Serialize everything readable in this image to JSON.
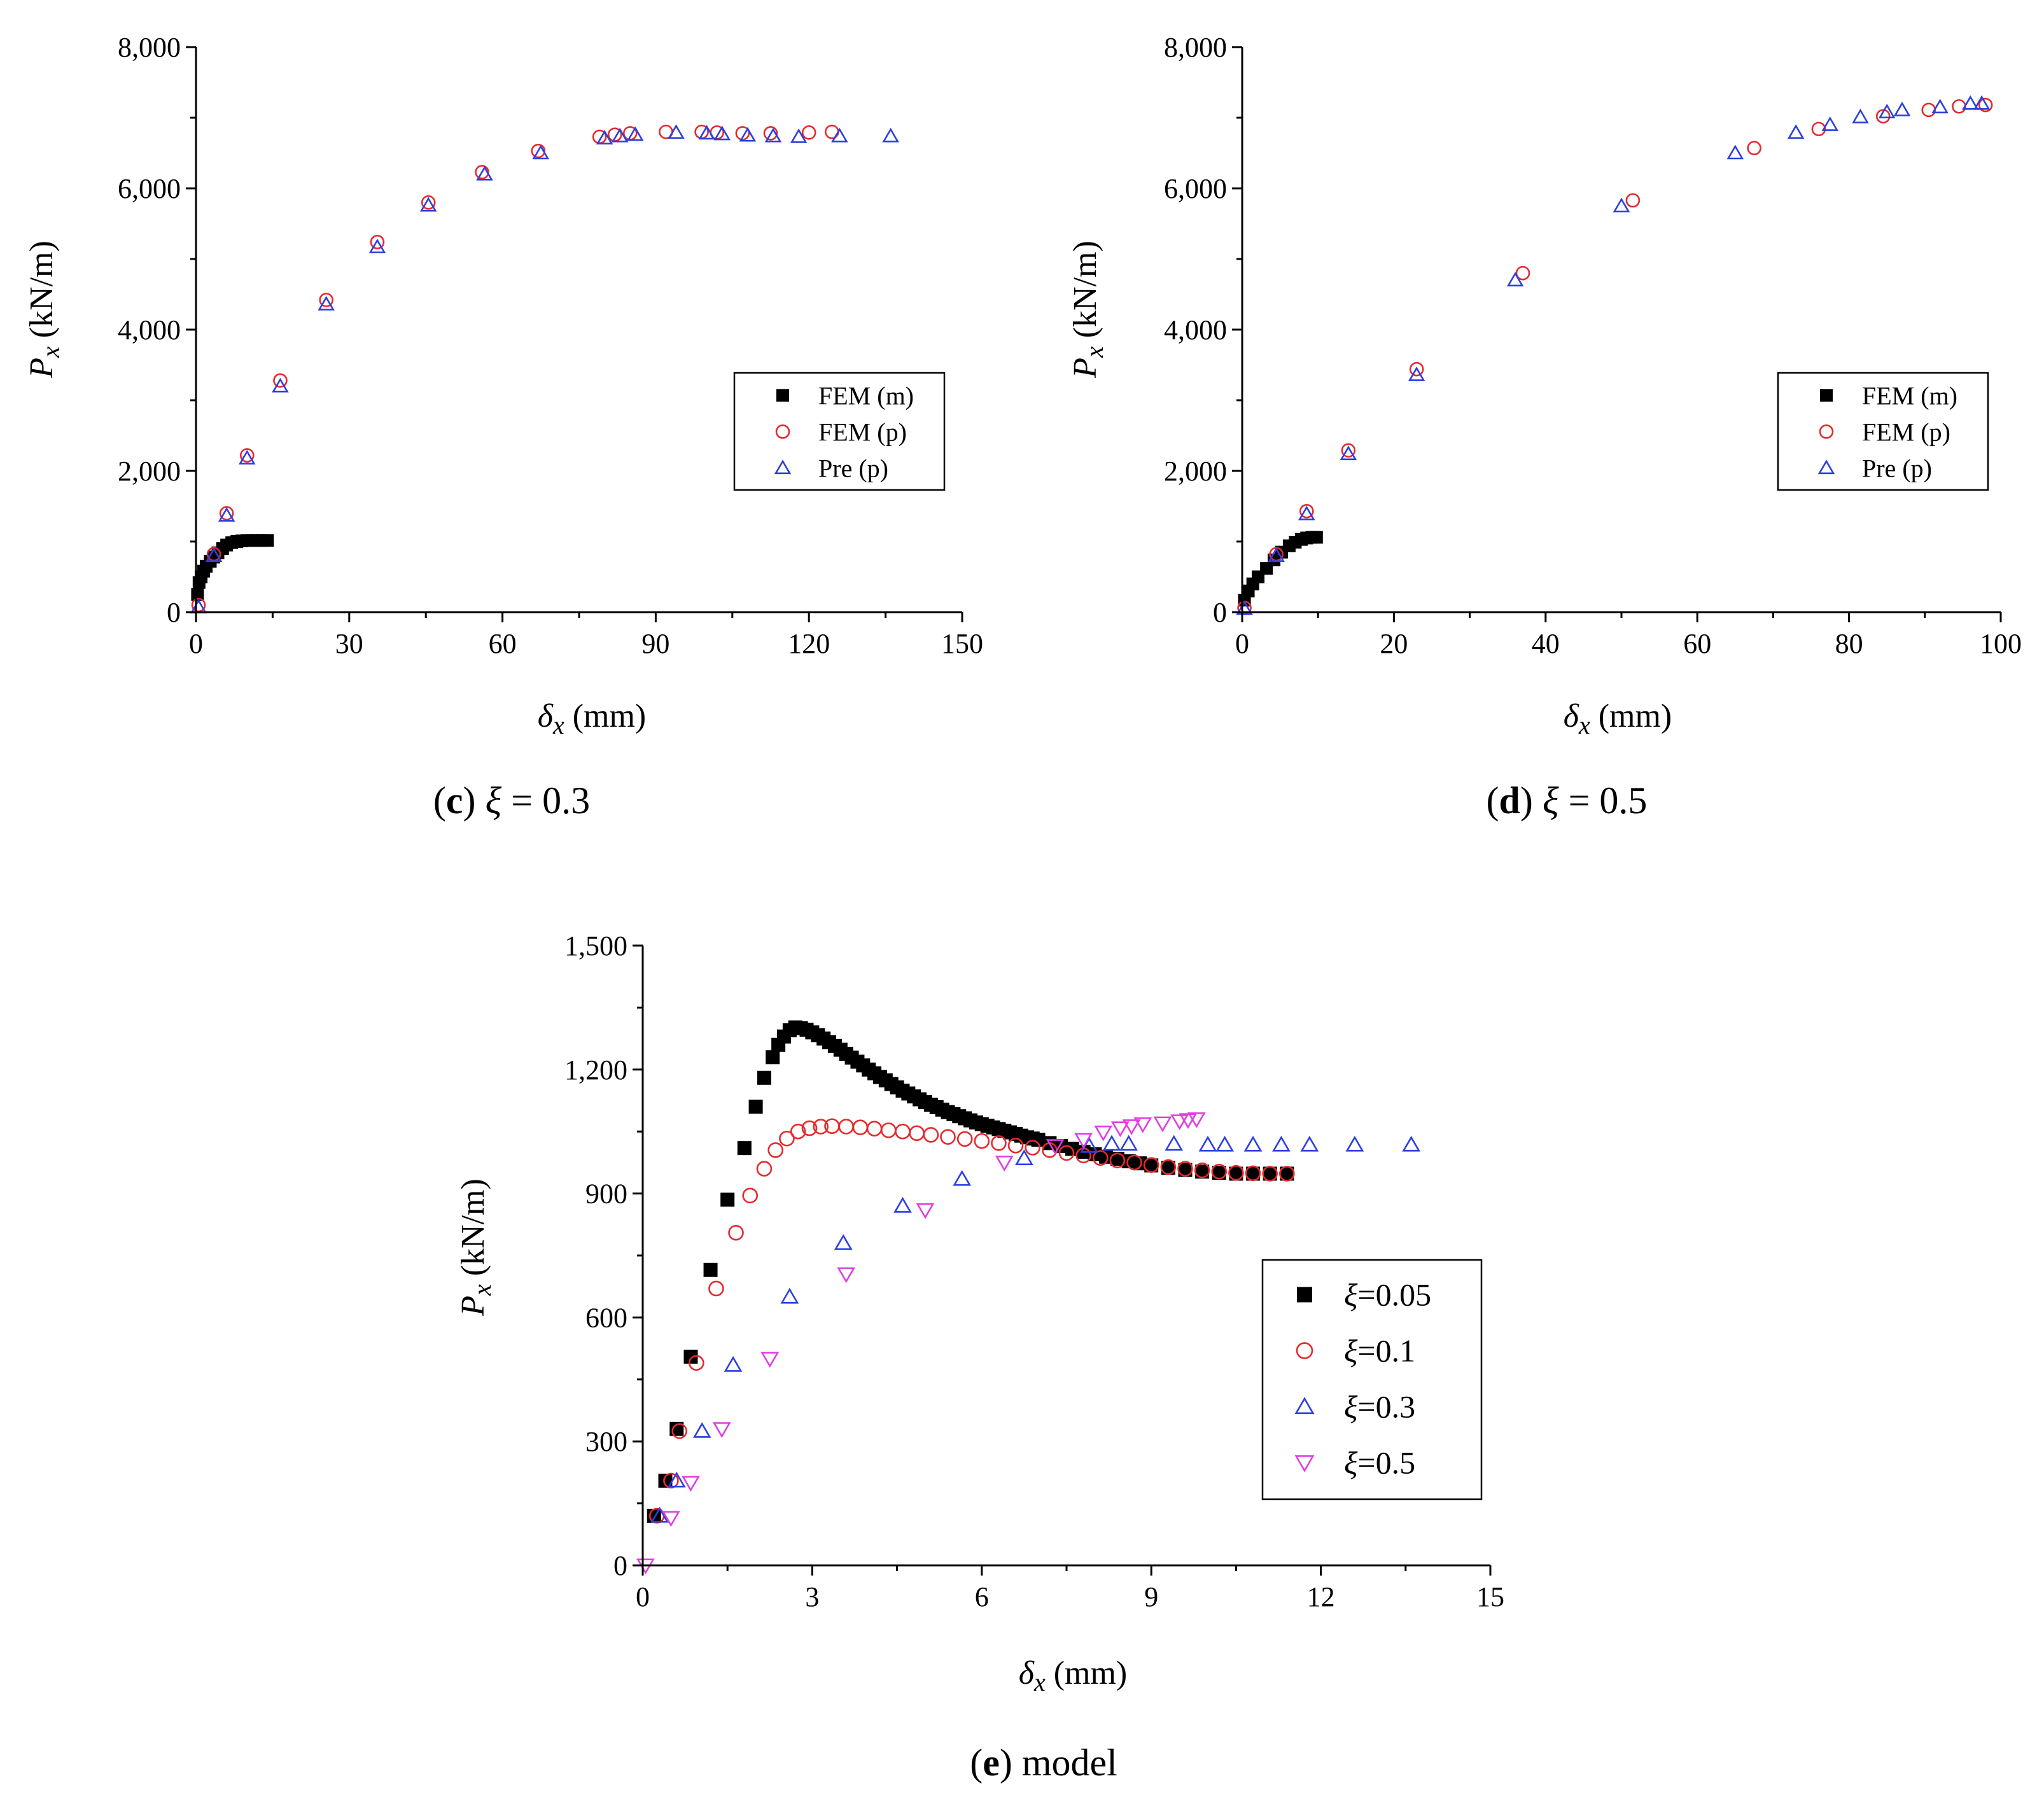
{
  "chart_data": [
    {
      "id": "c",
      "type": "scatter",
      "caption_letter": "c",
      "caption_rest": " = 0.3",
      "caption_symbol": "ξ",
      "xlabel_symbol": "δ",
      "xlabel_sub": "x",
      "xlabel_unit": " (mm)",
      "ylabel_symbol": "P",
      "ylabel_sub": "x",
      "ylabel_unit": " (kN/m)",
      "xlim": [
        0,
        150
      ],
      "ylim": [
        0,
        8000
      ],
      "xticks": [
        0,
        30,
        60,
        90,
        120,
        150
      ],
      "xtick_labels": [
        "0",
        "30",
        "60",
        "90",
        "120",
        "150"
      ],
      "yticks": [
        0,
        2000,
        4000,
        6000,
        8000
      ],
      "ytick_labels": [
        "0",
        "2,000",
        "4,000",
        "6,000",
        "8,000"
      ],
      "legend_position": "middle-right",
      "series": [
        {
          "name": "FEM (m)",
          "marker": "square",
          "color": "#000000",
          "x": [
            0.3,
            0.6,
            1.0,
            1.5,
            2.0,
            2.8,
            3.5,
            4.3,
            5.2,
            6.0,
            7.0,
            8.0,
            9.0,
            10.0,
            11.0,
            12.0,
            13.0,
            14.0
          ],
          "y": [
            250,
            420,
            500,
            580,
            650,
            720,
            780,
            840,
            900,
            950,
            985,
            1000,
            1010,
            1015,
            1015,
            1015,
            1015,
            1015
          ]
        },
        {
          "name": "FEM (p)",
          "marker": "circle",
          "color": "#e8282d",
          "x": [
            0.5,
            3.5,
            6.0,
            10.0,
            16.5,
            25.5,
            35.5,
            45.5,
            56.0,
            67.0,
            79.0,
            82.0,
            85.0,
            92.0,
            99.0,
            102.0,
            107.0,
            112.5,
            120.0,
            124.5
          ],
          "y": [
            100,
            820,
            1400,
            2220,
            3280,
            4420,
            5240,
            5800,
            6230,
            6530,
            6730,
            6760,
            6780,
            6800,
            6800,
            6790,
            6780,
            6780,
            6790,
            6800
          ]
        },
        {
          "name": "Pre (p)",
          "marker": "triangle-up",
          "color": "#2a3fe0",
          "x": [
            0.5,
            3.5,
            6.0,
            10.0,
            16.5,
            25.5,
            35.5,
            45.5,
            56.5,
            67.5,
            80.0,
            83.0,
            86.0,
            94.0,
            100.0,
            103.0,
            108.0,
            113.0,
            118.0,
            126.0,
            136.0
          ],
          "y": [
            70,
            800,
            1370,
            2180,
            3200,
            4360,
            5170,
            5760,
            6200,
            6500,
            6710,
            6740,
            6760,
            6790,
            6780,
            6770,
            6750,
            6740,
            6730,
            6740,
            6740
          ]
        }
      ]
    },
    {
      "id": "d",
      "type": "scatter",
      "caption_letter": "d",
      "caption_rest": " = 0.5",
      "caption_symbol": "ξ",
      "xlabel_symbol": "δ",
      "xlabel_sub": "x",
      "xlabel_unit": " (mm)",
      "ylabel_symbol": "P",
      "ylabel_sub": "x",
      "ylabel_unit": " (kN/m)",
      "xlim": [
        0,
        100
      ],
      "ylim": [
        0,
        8000
      ],
      "xticks": [
        0,
        20,
        40,
        60,
        80,
        100
      ],
      "xtick_labels": [
        "0",
        "20",
        "40",
        "60",
        "80",
        "100"
      ],
      "yticks": [
        0,
        2000,
        4000,
        6000,
        8000
      ],
      "ytick_labels": [
        "0",
        "2,000",
        "4,000",
        "6,000",
        "8,000"
      ],
      "legend_position": "middle-right",
      "series": [
        {
          "name": "FEM (m)",
          "marker": "square",
          "color": "#000000",
          "x": [
            0.3,
            0.8,
            1.4,
            2.1,
            3.2,
            4.2,
            5.2,
            6.2,
            7.0,
            7.8,
            8.5,
            9.2,
            9.8
          ],
          "y": [
            170,
            300,
            400,
            500,
            620,
            740,
            850,
            940,
            990,
            1030,
            1050,
            1060,
            1060
          ]
        },
        {
          "name": "FEM (p)",
          "marker": "circle",
          "color": "#e8282d",
          "x": [
            0.3,
            4.5,
            8.5,
            14.0,
            23.0,
            37.0,
            51.5,
            67.5,
            76.0,
            84.5,
            90.5,
            94.5,
            98.0
          ],
          "y": [
            60,
            820,
            1430,
            2290,
            3440,
            4800,
            5830,
            6570,
            6840,
            7020,
            7110,
            7160,
            7180
          ]
        },
        {
          "name": "Pre (p)",
          "marker": "triangle-up",
          "color": "#2a3fe0",
          "x": [
            0.3,
            4.5,
            8.5,
            14.0,
            23.0,
            36.0,
            50.0,
            65.0,
            73.0,
            77.5,
            81.5,
            85.0,
            87.0,
            92.0,
            96.0,
            97.5
          ],
          "y": [
            50,
            800,
            1390,
            2240,
            3360,
            4700,
            5750,
            6500,
            6790,
            6900,
            7010,
            7080,
            7110,
            7150,
            7200,
            7200
          ]
        }
      ]
    },
    {
      "id": "e",
      "type": "scatter",
      "caption_letter": "e",
      "caption_rest": " model",
      "caption_symbol": "",
      "xlabel_symbol": "δ",
      "xlabel_sub": "x",
      "xlabel_unit": " (mm)",
      "ylabel_symbol": "P",
      "ylabel_sub": "x",
      "ylabel_unit": " (kN/m)",
      "xlim": [
        0,
        15
      ],
      "ylim": [
        0,
        1500
      ],
      "xticks": [
        0,
        3,
        6,
        9,
        12,
        15
      ],
      "xtick_labels": [
        "0",
        "3",
        "6",
        "9",
        "12",
        "15"
      ],
      "yticks": [
        0,
        300,
        600,
        900,
        1200,
        1500
      ],
      "ytick_labels": [
        "0",
        "300",
        "600",
        "900",
        "1,200",
        "1,500"
      ],
      "legend_position": "bottom-right",
      "series": [
        {
          "name": "=0.05",
          "symbol": "ξ",
          "marker": "square",
          "color": "#000000",
          "x": [
            0.2,
            0.4,
            0.6,
            0.85,
            1.2,
            1.5,
            1.8,
            2.0,
            2.15,
            2.3,
            2.4,
            2.5,
            2.6,
            2.7,
            2.8,
            2.9,
            3.0,
            3.1,
            3.2,
            3.3,
            3.4,
            3.5,
            3.6,
            3.7,
            3.8,
            3.9,
            4.0,
            4.1,
            4.2,
            4.3,
            4.4,
            4.5,
            4.6,
            4.7,
            4.8,
            4.9,
            5.0,
            5.1,
            5.2,
            5.3,
            5.4,
            5.5,
            5.6,
            5.7,
            5.8,
            5.9,
            6.0,
            6.1,
            6.2,
            6.3,
            6.4,
            6.5,
            6.6,
            6.7,
            6.8,
            6.9,
            7.0,
            7.2,
            7.4,
            7.6,
            7.8,
            8.0,
            8.2,
            8.4,
            8.6,
            8.8,
            9.0,
            9.3,
            9.6,
            9.9,
            10.2,
            10.5,
            10.8,
            11.1,
            11.4
          ],
          "y": [
            120,
            205,
            330,
            505,
            715,
            885,
            1010,
            1110,
            1180,
            1230,
            1260,
            1280,
            1295,
            1302,
            1300,
            1296,
            1290,
            1283,
            1275,
            1266,
            1257,
            1248,
            1238,
            1229,
            1219,
            1210,
            1200,
            1191,
            1182,
            1174,
            1165,
            1157,
            1149,
            1142,
            1135,
            1128,
            1121,
            1115,
            1109,
            1103,
            1097,
            1092,
            1087,
            1082,
            1077,
            1072,
            1068,
            1064,
            1060,
            1056,
            1052,
            1048,
            1044,
            1040,
            1036,
            1033,
            1030,
            1022,
            1015,
            1008,
            1001,
            995,
            989,
            984,
            978,
            973,
            968,
            962,
            957,
            953,
            950,
            948,
            948,
            948,
            948
          ]
        },
        {
          "name": "=0.1",
          "symbol": "ξ",
          "marker": "circle",
          "color": "#e8282d",
          "x": [
            0.25,
            0.5,
            0.65,
            0.95,
            1.3,
            1.65,
            1.9,
            2.15,
            2.35,
            2.55,
            2.75,
            2.95,
            3.15,
            3.35,
            3.6,
            3.85,
            4.1,
            4.35,
            4.6,
            4.85,
            5.1,
            5.4,
            5.7,
            6.0,
            6.3,
            6.6,
            6.9,
            7.2,
            7.5,
            7.8,
            8.1,
            8.4,
            8.7,
            9.0,
            9.3,
            9.6,
            9.9,
            10.2,
            10.5,
            10.8,
            11.1,
            11.4
          ],
          "y": [
            120,
            205,
            325,
            490,
            670,
            805,
            895,
            960,
            1005,
            1033,
            1050,
            1058,
            1062,
            1063,
            1062,
            1060,
            1057,
            1053,
            1050,
            1046,
            1042,
            1037,
            1032,
            1027,
            1022,
            1016,
            1011,
            1005,
            998,
            992,
            986,
            980,
            975,
            969,
            964,
            960,
            956,
            953,
            950,
            949,
            948,
            948
          ]
        },
        {
          "name": "=0.3",
          "symbol": "ξ",
          "marker": "triangle-up",
          "color": "#2a3fe0",
          "x": [
            0.3,
            0.6,
            1.05,
            1.6,
            2.6,
            3.55,
            4.6,
            5.65,
            6.75,
            7.9,
            8.3,
            8.6,
            9.4,
            10.0,
            10.3,
            10.8,
            11.3,
            11.8,
            12.6,
            13.6
          ],
          "y": [
            120,
            205,
            325,
            485,
            650,
            780,
            870,
            935,
            985,
            1015,
            1020,
            1020,
            1020,
            1018,
            1018,
            1018,
            1018,
            1018,
            1018,
            1018
          ]
        },
        {
          "name": "=0.5",
          "symbol": "ξ",
          "marker": "triangle-down",
          "color": "#e03ee0",
          "x": [
            0.05,
            0.5,
            0.85,
            1.4,
            2.25,
            3.6,
            5.0,
            6.4,
            7.3,
            7.8,
            8.15,
            8.45,
            8.65,
            8.85,
            9.2,
            9.5,
            9.65,
            9.8
          ],
          "y": [
            0,
            115,
            200,
            330,
            500,
            705,
            860,
            975,
            1015,
            1030,
            1048,
            1058,
            1063,
            1068,
            1070,
            1075,
            1078,
            1080
          ]
        }
      ]
    }
  ]
}
